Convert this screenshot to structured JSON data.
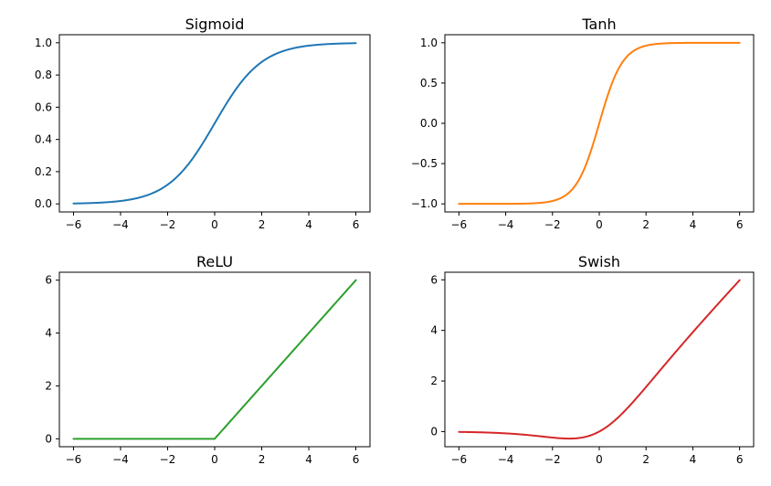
{
  "chart_data": [
    {
      "type": "line",
      "title": "Sigmoid",
      "function": "sigmoid",
      "xlim": [
        -6.6,
        6.6
      ],
      "ylim": [
        -0.05,
        1.05
      ],
      "xticks": [
        -6,
        -4,
        -2,
        0,
        2,
        4,
        6
      ],
      "xtick_labels": [
        "−6",
        "−4",
        "−2",
        "0",
        "2",
        "4",
        "6"
      ],
      "yticks": [
        0,
        0.2,
        0.4,
        0.6,
        0.8,
        1.0
      ],
      "ytick_labels": [
        "0.0",
        "0.2",
        "0.4",
        "0.6",
        "0.8",
        "1.0"
      ],
      "color": "#1f77b4",
      "x_range": [
        -6,
        6
      ]
    },
    {
      "type": "line",
      "title": "Tanh",
      "function": "tanh",
      "xlim": [
        -6.6,
        6.6
      ],
      "ylim": [
        -1.1,
        1.1
      ],
      "xticks": [
        -6,
        -4,
        -2,
        0,
        2,
        4,
        6
      ],
      "xtick_labels": [
        "−6",
        "−4",
        "−2",
        "0",
        "2",
        "4",
        "6"
      ],
      "yticks": [
        -1.0,
        -0.5,
        0.0,
        0.5,
        1.0
      ],
      "ytick_labels": [
        "−1.0",
        "−0.5",
        "0.0",
        "0.5",
        "1.0"
      ],
      "color": "#ff7f0e",
      "x_range": [
        -6,
        6
      ]
    },
    {
      "type": "line",
      "title": "ReLU",
      "function": "relu",
      "xlim": [
        -6.6,
        6.6
      ],
      "ylim": [
        -0.3,
        6.3
      ],
      "xticks": [
        -6,
        -4,
        -2,
        0,
        2,
        4,
        6
      ],
      "xtick_labels": [
        "−6",
        "−4",
        "−2",
        "0",
        "2",
        "4",
        "6"
      ],
      "yticks": [
        0,
        2,
        4,
        6
      ],
      "ytick_labels": [
        "0",
        "2",
        "4",
        "6"
      ],
      "color": "#2ca02c",
      "x_range": [
        -6,
        6
      ]
    },
    {
      "type": "line",
      "title": "Swish",
      "function": "swish",
      "xlim": [
        -6.6,
        6.6
      ],
      "ylim": [
        -0.6,
        6.3
      ],
      "xticks": [
        -6,
        -4,
        -2,
        0,
        2,
        4,
        6
      ],
      "xtick_labels": [
        "−6",
        "−4",
        "−2",
        "0",
        "2",
        "4",
        "6"
      ],
      "yticks": [
        0,
        2,
        4,
        6
      ],
      "ytick_labels": [
        "0",
        "2",
        "4",
        "6"
      ],
      "color": "#d62728",
      "x_range": [
        -6,
        6
      ]
    }
  ]
}
